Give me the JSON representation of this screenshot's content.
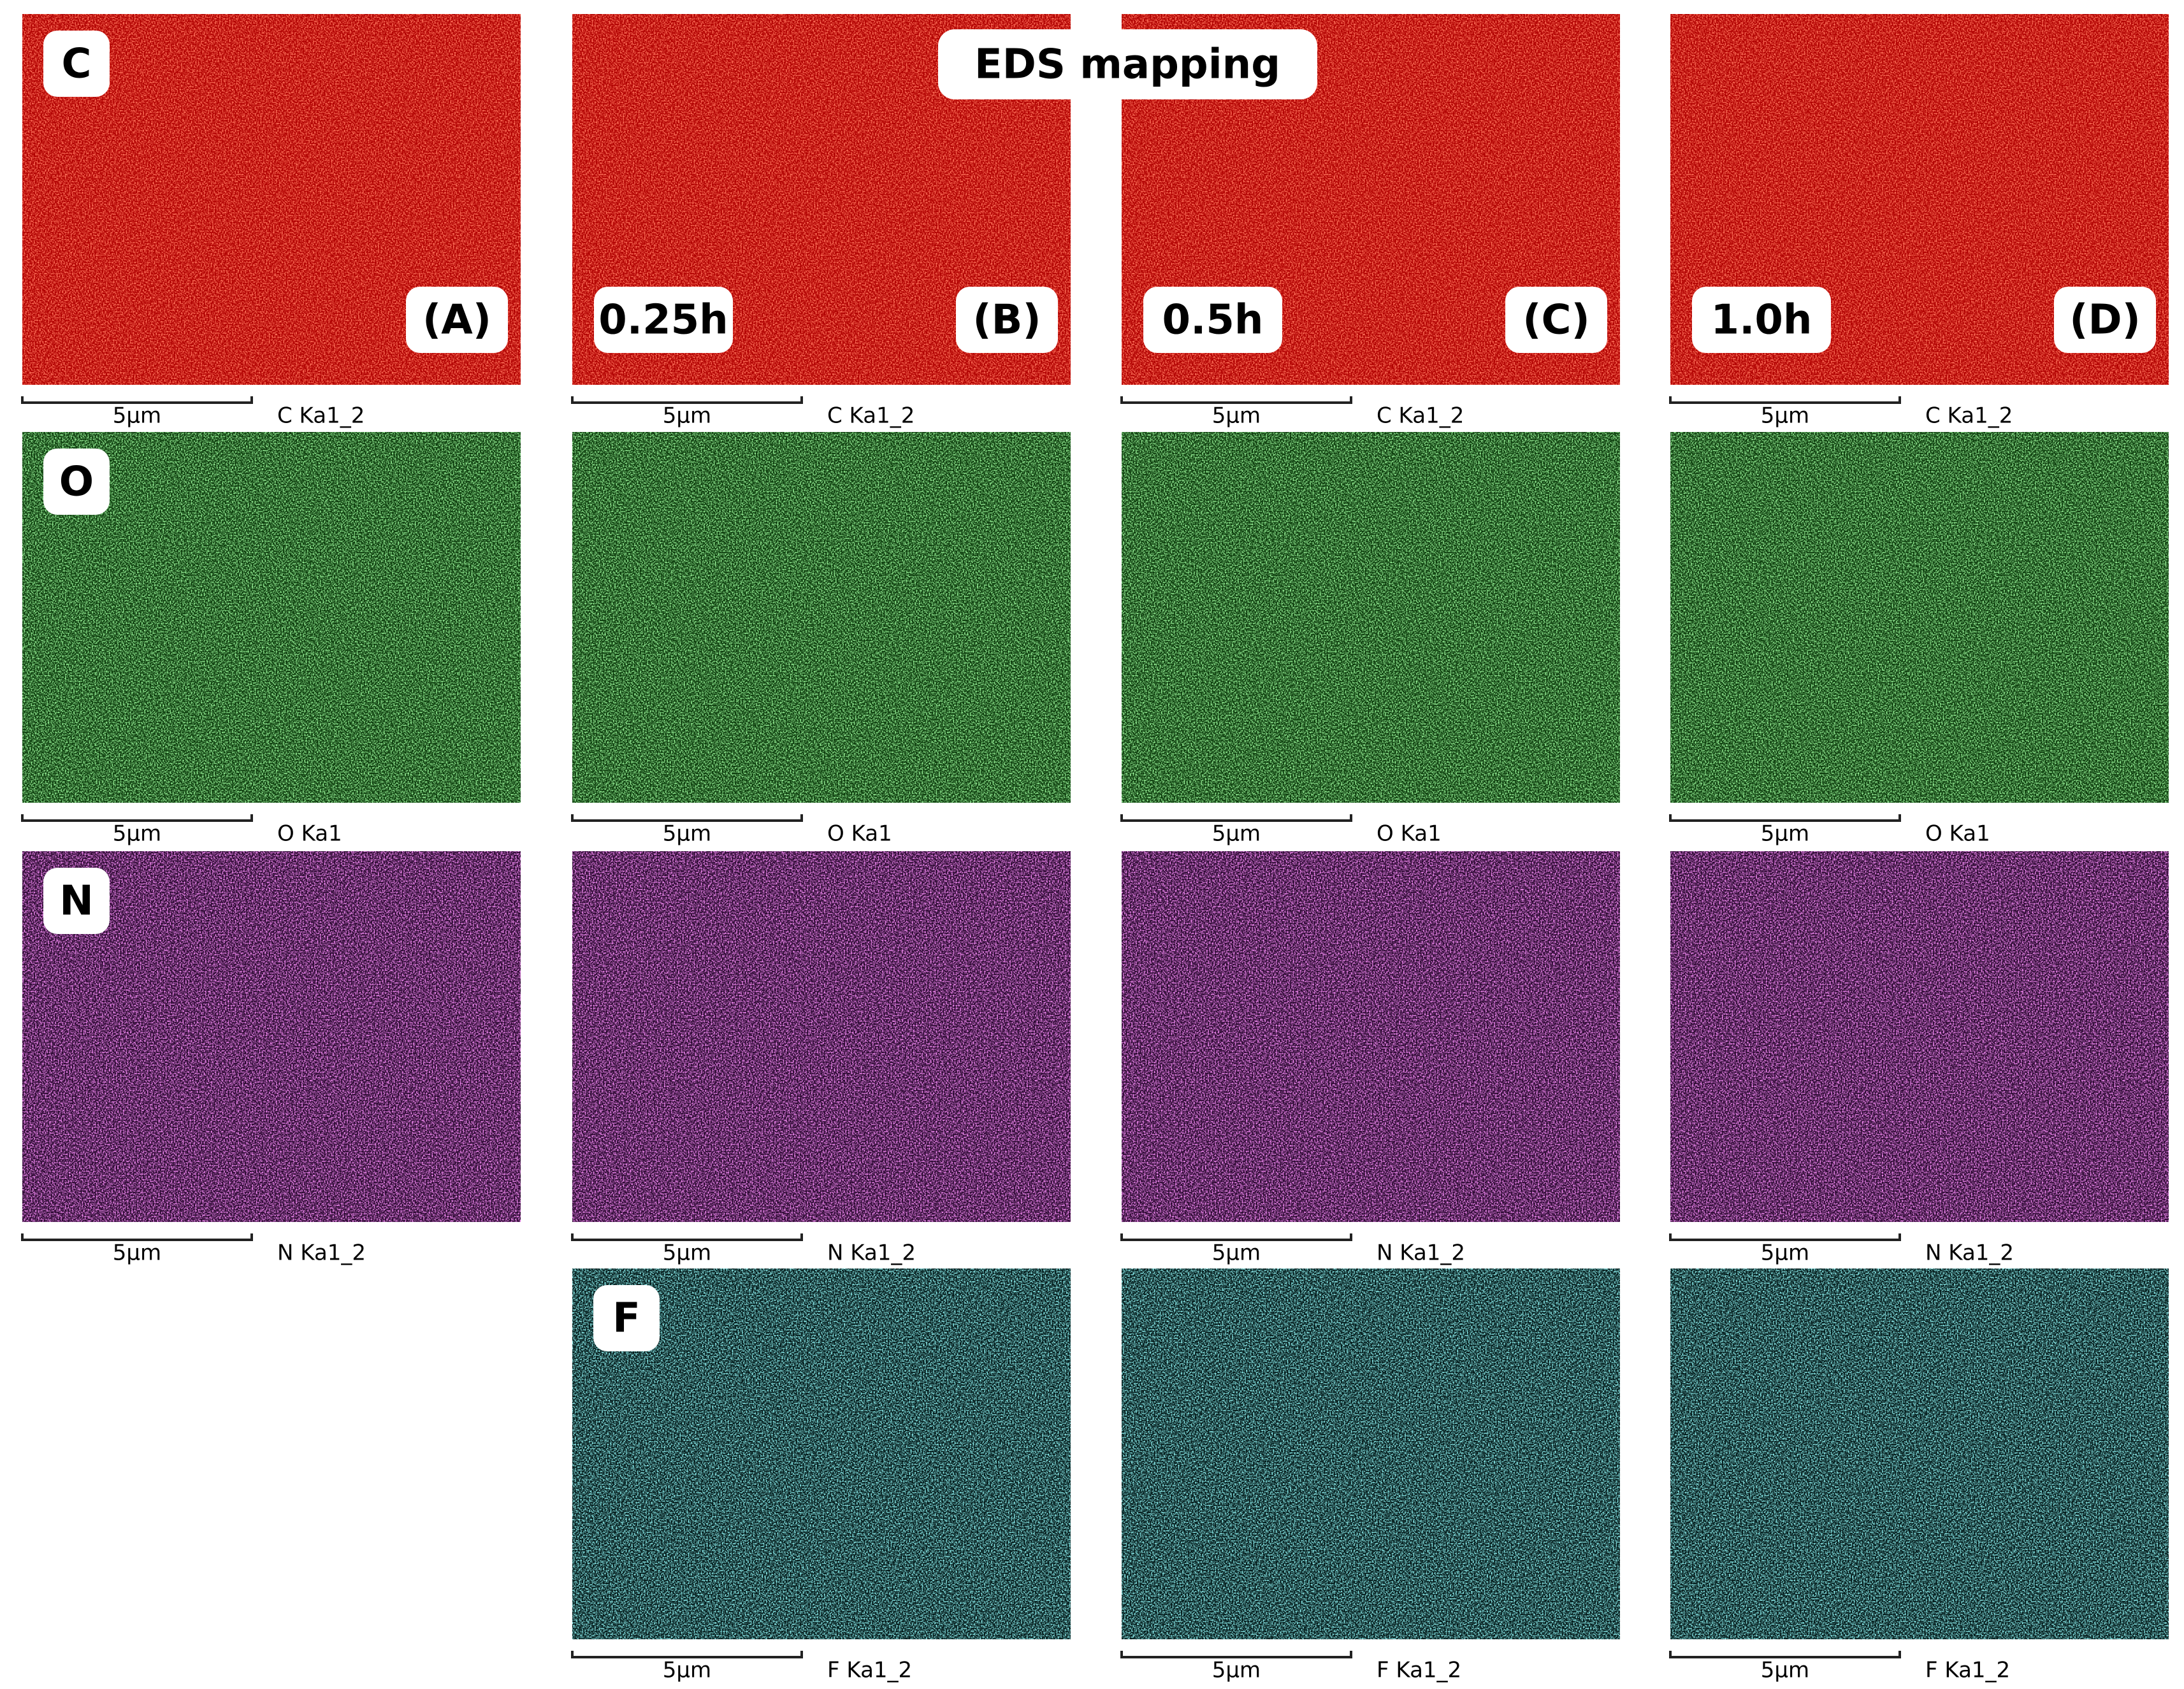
{
  "title": "EDS mapping",
  "columns": [
    {
      "panel": "(A)",
      "time": null
    },
    {
      "panel": "(B)",
      "time": "0.25h"
    },
    {
      "panel": "(C)",
      "time": "0.5h"
    },
    {
      "panel": "(D)",
      "time": "1.0h"
    }
  ],
  "rows": [
    {
      "element": "C",
      "color": "#ff2a1a",
      "base": "#b00000",
      "maps": [
        {
          "scale": "5μm",
          "label": "C Ka1_2"
        },
        {
          "scale": "5μm",
          "label": "C Ka1_2"
        },
        {
          "scale": "5μm",
          "label": "C Ka1_2"
        },
        {
          "scale": "5μm",
          "label": "C Ka1_2"
        }
      ]
    },
    {
      "element": "O",
      "color": "#4cd84c",
      "base": "#0b3a0b",
      "maps": [
        {
          "scale": "5μm",
          "label": "O Ka1"
        },
        {
          "scale": "5μm",
          "label": "O Ka1"
        },
        {
          "scale": "5μm",
          "label": "O Ka1"
        },
        {
          "scale": "5μm",
          "label": "O Ka1"
        }
      ]
    },
    {
      "element": "N",
      "color": "#e040e0",
      "base": "#2a0830",
      "maps": [
        {
          "scale": "5μm",
          "label": "N Ka1_2"
        },
        {
          "scale": "5μm",
          "label": "N Ka1_2"
        },
        {
          "scale": "5μm",
          "label": "N Ka1_2"
        },
        {
          "scale": "5μm",
          "label": "N Ka1_2"
        }
      ]
    },
    {
      "element": "F",
      "color": "#40d0d0",
      "base": "#021818",
      "maps": [
        null,
        {
          "scale": "5μm",
          "label": "F Ka1_2"
        },
        {
          "scale": "5μm",
          "label": "F Ka1_2"
        },
        {
          "scale": "5μm",
          "label": "F Ka1_2"
        }
      ]
    }
  ]
}
